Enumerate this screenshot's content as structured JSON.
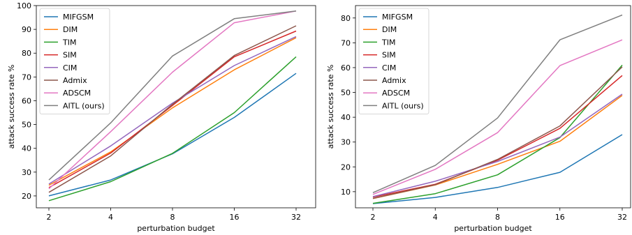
{
  "chart_data": [
    {
      "type": "line",
      "xlabel": "perturbation budget",
      "ylabel": "attack success rate %",
      "categories": [
        "2",
        "4",
        "8",
        "16",
        "32"
      ],
      "ylim": [
        15,
        100
      ],
      "yticks": [
        20,
        30,
        40,
        50,
        60,
        70,
        80,
        90,
        100
      ],
      "legend": "top-left",
      "grid": false,
      "series": [
        {
          "name": "MIFGSM",
          "color": "#1f77b4",
          "values": [
            20.0,
            26.7,
            37.7,
            53.0,
            71.5
          ]
        },
        {
          "name": "DIM",
          "color": "#ff7f0e",
          "values": [
            24.5,
            38.5,
            57.0,
            73.0,
            86.5
          ]
        },
        {
          "name": "TIM",
          "color": "#2ca02c",
          "values": [
            18.0,
            26.0,
            37.9,
            55.0,
            78.5
          ]
        },
        {
          "name": "SIM",
          "color": "#d62728",
          "values": [
            23.5,
            38.0,
            58.0,
            78.5,
            89.3
          ]
        },
        {
          "name": "CIM",
          "color": "#9467bd",
          "values": [
            25.0,
            41.0,
            59.0,
            74.8,
            87.0
          ]
        },
        {
          "name": "Admix",
          "color": "#8c564b",
          "values": [
            21.5,
            36.8,
            58.5,
            79.0,
            91.5
          ]
        },
        {
          "name": "ADSCM",
          "color": "#e377c2",
          "values": [
            23.0,
            47.0,
            72.0,
            92.8,
            97.7
          ]
        },
        {
          "name": "AITL (ours)",
          "color": "#7f7f7f",
          "values": [
            26.7,
            50.7,
            78.8,
            94.5,
            97.7
          ]
        }
      ]
    },
    {
      "type": "line",
      "xlabel": "perturbation budget",
      "ylabel": "attack success rate %",
      "categories": [
        "2",
        "4",
        "8",
        "16",
        "32"
      ],
      "ylim": [
        3.5,
        85
      ],
      "yticks": [
        10,
        20,
        30,
        40,
        50,
        60,
        70,
        80
      ],
      "legend": "top-left",
      "grid": false,
      "series": [
        {
          "name": "MIFGSM",
          "color": "#1f77b4",
          "values": [
            5.2,
            7.7,
            11.7,
            17.8,
            33.0
          ]
        },
        {
          "name": "DIM",
          "color": "#ff7f0e",
          "values": [
            7.2,
            12.7,
            21.0,
            30.3,
            48.8
          ]
        },
        {
          "name": "TIM",
          "color": "#2ca02c",
          "values": [
            5.3,
            9.2,
            16.8,
            31.8,
            61.0
          ]
        },
        {
          "name": "SIM",
          "color": "#d62728",
          "values": [
            7.8,
            13.0,
            22.7,
            35.5,
            56.8
          ]
        },
        {
          "name": "CIM",
          "color": "#9467bd",
          "values": [
            8.0,
            14.2,
            22.2,
            32.0,
            49.3
          ]
        },
        {
          "name": "Admix",
          "color": "#8c564b",
          "values": [
            7.3,
            12.8,
            23.0,
            36.5,
            60.3
          ]
        },
        {
          "name": "ADSCM",
          "color": "#e377c2",
          "values": [
            8.9,
            19.0,
            33.8,
            60.8,
            71.2
          ]
        },
        {
          "name": "AITL (ours)",
          "color": "#7f7f7f",
          "values": [
            9.6,
            20.6,
            39.7,
            71.2,
            81.2
          ]
        }
      ]
    }
  ]
}
